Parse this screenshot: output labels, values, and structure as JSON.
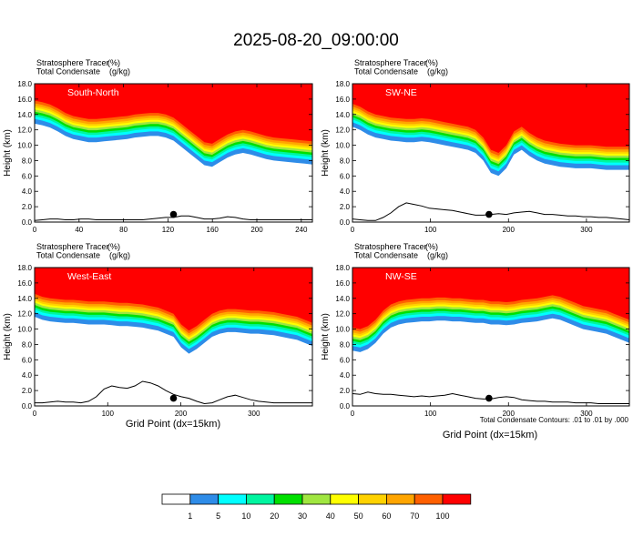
{
  "title": "2025-08-20_09:00:00",
  "colors": {
    "white": "#ffffff",
    "light_blue": "#2e8ce8",
    "cyan": "#00ffff",
    "aqua_green": "#00f5a0",
    "green": "#00e000",
    "yellow_green": "#a0e640",
    "yellow": "#ffff00",
    "gold": "#ffd200",
    "orange": "#ffa500",
    "dark_orange": "#ff6000",
    "red": "#ff0000"
  },
  "colorbar": {
    "levels": [
      "1",
      "5",
      "10",
      "20",
      "30",
      "40",
      "50",
      "60",
      "70",
      "100"
    ]
  },
  "contour_note": "Total Condensate Contours: .01 to .01 by .000",
  "x_axis_label": "Grid Point (dx=15km)",
  "chart_data": [
    {
      "type": "heatmap",
      "panel": "South-North",
      "subtitle_left": [
        "Stratosphere Tracer",
        "Total Condensate"
      ],
      "subtitle_units": [
        "(%)",
        "(g/kg)"
      ],
      "ylabel": "Height (km)",
      "ylim": [
        0,
        18
      ],
      "xlim": [
        0,
        250
      ],
      "x_ticks": [
        "0",
        "40",
        "80",
        "120",
        "160",
        "200",
        "240"
      ],
      "x_tick_values": [
        0,
        40,
        80,
        120,
        160,
        200,
        240
      ],
      "y_ticks": [
        "0.0",
        "2.0",
        "4.0",
        "6.0",
        "8.0",
        "10.0",
        "12.0",
        "14.0",
        "16.0",
        "18.0"
      ],
      "tracer_base_km": [
        15.8,
        15.6,
        15.3,
        14.8,
        14.2,
        13.8,
        13.6,
        13.4,
        13.4,
        13.5,
        13.6,
        13.7,
        13.8,
        14.0,
        14.1,
        14.2,
        14.2,
        14.0,
        13.6,
        12.8,
        12.0,
        11.2,
        10.4,
        10.2,
        10.8,
        11.4,
        11.8,
        12.0,
        11.8,
        11.5,
        11.2,
        11.0,
        10.9,
        10.8,
        10.7,
        10.6,
        10.5
      ],
      "terrain_km": [
        0.2,
        0.3,
        0.4,
        0.4,
        0.3,
        0.3,
        0.4,
        0.4,
        0.3,
        0.3,
        0.3,
        0.3,
        0.3,
        0.3,
        0.3,
        0.4,
        0.5,
        0.6,
        0.6,
        0.8,
        0.8,
        0.6,
        0.4,
        0.4,
        0.5,
        0.7,
        0.6,
        0.4,
        0.3,
        0.3,
        0.3,
        0.3,
        0.3,
        0.3,
        0.3,
        0.3,
        0.3
      ],
      "marker": {
        "x": 125,
        "height_km": 1.0
      }
    },
    {
      "type": "heatmap",
      "panel": "SW-NE",
      "subtitle_left": [
        "Stratosphere Tracer",
        "Total Condensate"
      ],
      "subtitle_units": [
        "(%)",
        "(g/kg)"
      ],
      "ylabel": "Height (km)",
      "ylim": [
        0,
        18
      ],
      "xlim": [
        0,
        355
      ],
      "x_ticks": [
        "0",
        "100",
        "200",
        "300"
      ],
      "x_tick_values": [
        0,
        100,
        200,
        300
      ],
      "y_ticks": [
        "0.0",
        "2.0",
        "4.0",
        "6.0",
        "8.0",
        "10.0",
        "12.0",
        "14.0",
        "16.0",
        "18.0"
      ],
      "tracer_base_km": [
        15.4,
        15.0,
        14.4,
        14.0,
        13.8,
        13.6,
        13.5,
        13.4,
        13.4,
        13.5,
        13.4,
        13.2,
        13.0,
        12.8,
        12.6,
        12.4,
        12.0,
        11.0,
        9.4,
        9.0,
        10.0,
        11.8,
        12.4,
        11.6,
        11.0,
        10.6,
        10.4,
        10.2,
        10.1,
        10.0,
        10.0,
        10.0,
        9.9,
        9.8,
        9.8,
        9.8,
        9.8
      ],
      "terrain_km": [
        0.4,
        0.3,
        0.2,
        0.2,
        0.6,
        1.2,
        2.0,
        2.5,
        2.3,
        2.1,
        1.8,
        1.7,
        1.6,
        1.5,
        1.3,
        1.1,
        0.9,
        0.9,
        1.0,
        1.1,
        1.0,
        1.2,
        1.3,
        1.4,
        1.2,
        1.0,
        1.0,
        0.9,
        0.8,
        0.8,
        0.7,
        0.7,
        0.6,
        0.6,
        0.5,
        0.4,
        0.3
      ],
      "marker": {
        "x": 175,
        "height_km": 1.0
      }
    },
    {
      "type": "heatmap",
      "panel": "West-East",
      "subtitle_left": [
        "Stratosphere Tracer",
        "Total Condensate"
      ],
      "subtitle_units": [
        "(%)",
        "(g/kg)"
      ],
      "ylabel": "Height (km)",
      "ylim": [
        0,
        18
      ],
      "xlim": [
        0,
        380
      ],
      "x_ticks": [
        "0",
        "100",
        "200",
        "300"
      ],
      "x_tick_values": [
        0,
        100,
        200,
        300
      ],
      "y_ticks": [
        "0.0",
        "2.0",
        "4.0",
        "6.0",
        "8.0",
        "10.0",
        "12.0",
        "14.0",
        "16.0",
        "18.0"
      ],
      "tracer_base_km": [
        14.6,
        14.2,
        14.0,
        13.9,
        13.8,
        13.8,
        13.7,
        13.6,
        13.6,
        13.6,
        13.5,
        13.4,
        13.4,
        13.3,
        13.2,
        13.0,
        12.8,
        12.4,
        12.0,
        10.6,
        9.8,
        10.4,
        11.2,
        12.0,
        12.4,
        12.6,
        12.6,
        12.5,
        12.4,
        12.4,
        12.3,
        12.2,
        12.0,
        11.8,
        11.6,
        11.2,
        10.8
      ],
      "terrain_km": [
        0.4,
        0.4,
        0.5,
        0.6,
        0.5,
        0.5,
        0.4,
        0.6,
        1.2,
        2.2,
        2.6,
        2.4,
        2.3,
        2.6,
        3.2,
        3.0,
        2.6,
        2.0,
        1.5,
        1.2,
        1.0,
        0.6,
        0.3,
        0.4,
        0.8,
        1.2,
        1.4,
        1.1,
        0.8,
        0.6,
        0.5,
        0.4,
        0.4,
        0.4,
        0.4,
        0.4,
        0.4
      ],
      "marker": {
        "x": 190,
        "height_km": 1.0
      }
    },
    {
      "type": "heatmap",
      "panel": "NW-SE",
      "subtitle_left": [
        "Stratosphere Tracer",
        "Total Condensate"
      ],
      "subtitle_units": [
        "(%)",
        "(g/kg)"
      ],
      "ylabel": "Height (km)",
      "ylim": [
        0,
        18
      ],
      "xlim": [
        0,
        355
      ],
      "x_ticks": [
        "0",
        "100",
        "200",
        "300"
      ],
      "x_tick_values": [
        0,
        100,
        200,
        300
      ],
      "y_ticks": [
        "0.0",
        "2.0",
        "4.0",
        "6.0",
        "8.0",
        "10.0",
        "12.0",
        "14.0",
        "16.0",
        "18.0"
      ],
      "tracer_base_km": [
        10.2,
        10.0,
        10.4,
        11.2,
        12.4,
        13.2,
        13.6,
        13.8,
        13.9,
        14.0,
        14.0,
        14.1,
        14.1,
        14.0,
        14.0,
        13.9,
        13.8,
        13.8,
        13.6,
        13.6,
        13.5,
        13.6,
        13.8,
        13.9,
        14.0,
        14.2,
        14.4,
        14.2,
        13.8,
        13.4,
        13.0,
        12.8,
        12.6,
        12.4,
        12.0,
        11.6,
        11.2
      ],
      "terrain_km": [
        1.6,
        1.5,
        1.8,
        1.6,
        1.5,
        1.5,
        1.4,
        1.3,
        1.2,
        1.3,
        1.2,
        1.3,
        1.4,
        1.6,
        1.4,
        1.2,
        1.0,
        0.9,
        0.9,
        1.1,
        1.2,
        1.1,
        0.8,
        0.7,
        0.6,
        0.6,
        0.5,
        0.5,
        0.5,
        0.4,
        0.4,
        0.4,
        0.3,
        0.3,
        0.3,
        0.3,
        0.3
      ],
      "marker": {
        "x": 175,
        "height_km": 1.0
      }
    }
  ]
}
